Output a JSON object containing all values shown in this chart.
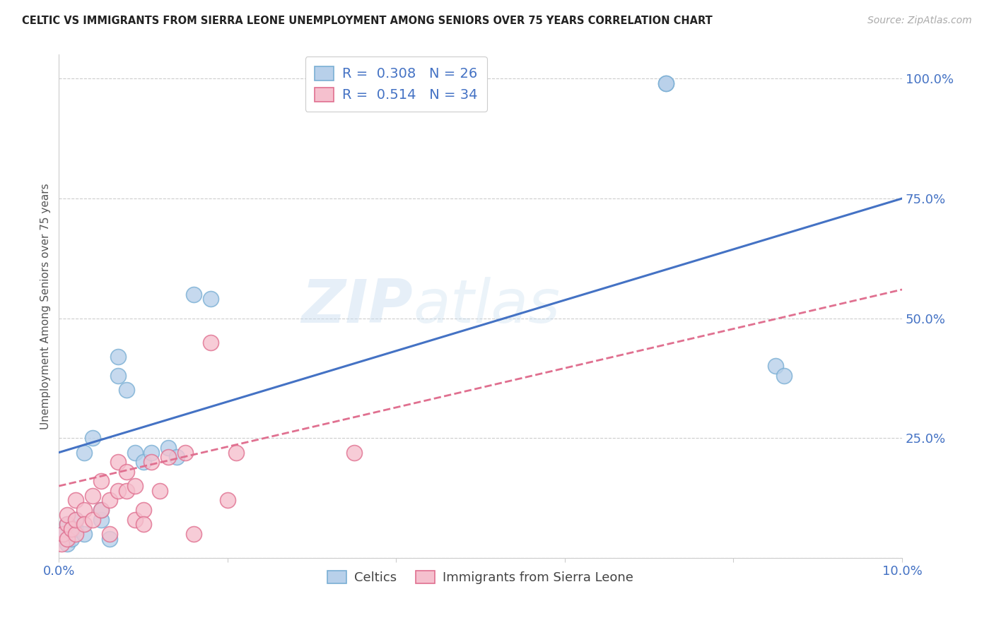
{
  "title": "CELTIC VS IMMIGRANTS FROM SIERRA LEONE UNEMPLOYMENT AMONG SENIORS OVER 75 YEARS CORRELATION CHART",
  "source": "Source: ZipAtlas.com",
  "ylabel": "Unemployment Among Seniors over 75 years",
  "xlim": [
    0.0,
    0.1
  ],
  "ylim": [
    0.0,
    1.05
  ],
  "xticks": [
    0.0,
    0.02,
    0.04,
    0.06,
    0.08,
    0.1
  ],
  "xticklabels": [
    "0.0%",
    "",
    "",
    "",
    "",
    "10.0%"
  ],
  "yticks_right": [
    0.0,
    0.25,
    0.5,
    0.75,
    1.0
  ],
  "ytick_right_labels": [
    "",
    "25.0%",
    "50.0%",
    "75.0%",
    "100.0%"
  ],
  "right_axis_color": "#4472c4",
  "background_color": "#ffffff",
  "watermark": "ZIPAtlas",
  "legend_r1": "0.308",
  "legend_n1": "26",
  "legend_r2": "0.514",
  "legend_n2": "34",
  "legend_labels": [
    "Celtics",
    "Immigrants from Sierra Leone"
  ],
  "celtics_color": "#b8d0ea",
  "celtics_edge_color": "#7aafd4",
  "sierra_color": "#f5c0ce",
  "sierra_edge_color": "#e07090",
  "regression_color_celtics": "#4472c4",
  "regression_color_sierra": "#e07090",
  "celtics_regression": [
    0.22,
    0.75
  ],
  "sierra_regression": [
    0.15,
    0.56
  ],
  "celtics_x": [
    0.0005,
    0.001,
    0.001,
    0.0015,
    0.002,
    0.002,
    0.003,
    0.003,
    0.004,
    0.005,
    0.005,
    0.006,
    0.007,
    0.007,
    0.008,
    0.009,
    0.01,
    0.011,
    0.013,
    0.014,
    0.016,
    0.018,
    0.072,
    0.072,
    0.085,
    0.086
  ],
  "celtics_y": [
    0.05,
    0.03,
    0.07,
    0.04,
    0.06,
    0.08,
    0.22,
    0.05,
    0.25,
    0.08,
    0.1,
    0.04,
    0.42,
    0.38,
    0.35,
    0.22,
    0.2,
    0.22,
    0.23,
    0.21,
    0.55,
    0.54,
    0.99,
    0.99,
    0.4,
    0.38
  ],
  "sierra_x": [
    0.0003,
    0.0005,
    0.001,
    0.001,
    0.001,
    0.0015,
    0.002,
    0.002,
    0.002,
    0.003,
    0.003,
    0.004,
    0.004,
    0.005,
    0.005,
    0.006,
    0.006,
    0.007,
    0.007,
    0.008,
    0.008,
    0.009,
    0.009,
    0.01,
    0.01,
    0.011,
    0.012,
    0.013,
    0.015,
    0.016,
    0.018,
    0.02,
    0.021,
    0.035
  ],
  "sierra_y": [
    0.03,
    0.05,
    0.04,
    0.07,
    0.09,
    0.06,
    0.05,
    0.08,
    0.12,
    0.1,
    0.07,
    0.13,
    0.08,
    0.16,
    0.1,
    0.05,
    0.12,
    0.2,
    0.14,
    0.18,
    0.14,
    0.15,
    0.08,
    0.1,
    0.07,
    0.2,
    0.14,
    0.21,
    0.22,
    0.05,
    0.45,
    0.12,
    0.22,
    0.22
  ]
}
